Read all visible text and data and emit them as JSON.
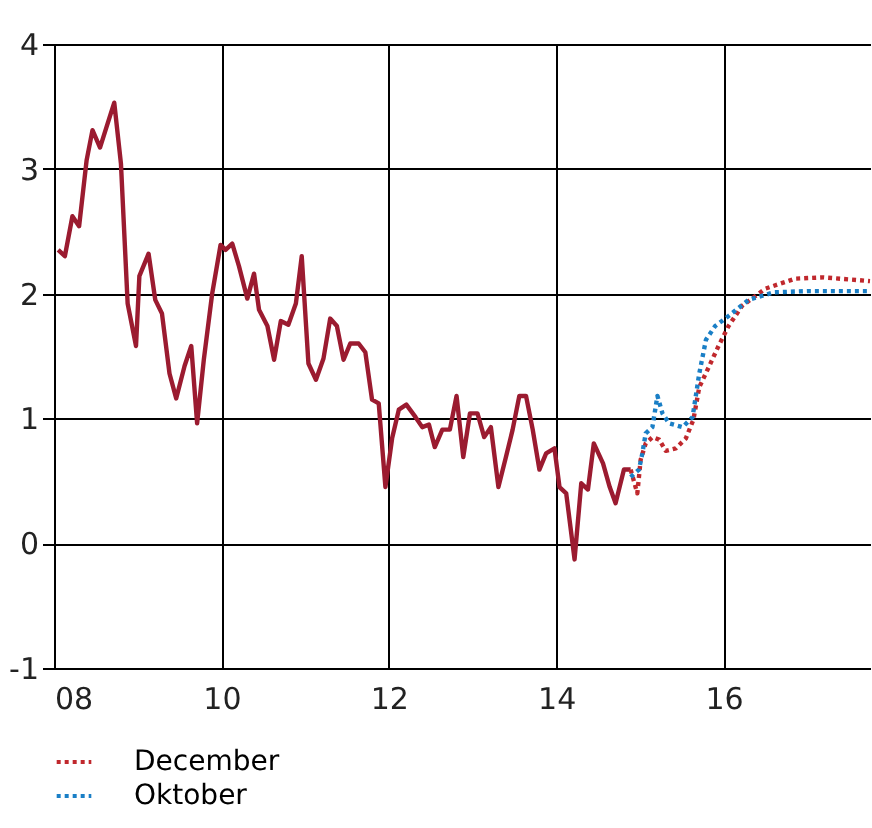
{
  "chart_data": {
    "type": "line",
    "xlim": [
      8,
      17.75
    ],
    "xticks": [
      {
        "value": 8,
        "label": "08"
      },
      {
        "value": 10,
        "label": "10"
      },
      {
        "value": 12,
        "label": "12"
      },
      {
        "value": 14,
        "label": "14"
      },
      {
        "value": 16,
        "label": "16"
      }
    ],
    "ylim": [
      -1,
      4
    ],
    "yticks": [
      -1,
      0,
      1,
      2,
      3,
      4
    ],
    "grid": true,
    "legend": "bottom left",
    "marker": "none",
    "series": [
      {
        "color": "#9b1b30",
        "line_style": "solid",
        "x": [
          8.05,
          8.13,
          8.22,
          8.3,
          8.39,
          8.46,
          8.55,
          8.63,
          8.72,
          8.8,
          8.88,
          8.98,
          9.02,
          9.13,
          9.21,
          9.29,
          9.38,
          9.46,
          9.56,
          9.64,
          9.71,
          9.79,
          9.89,
          9.99,
          10.05,
          10.13,
          10.21,
          10.31,
          10.39,
          10.45,
          10.55,
          10.63,
          10.71,
          10.8,
          10.89,
          10.96,
          11.04,
          11.13,
          11.22,
          11.3,
          11.38,
          11.46,
          11.54,
          11.64,
          11.72,
          11.8,
          11.88,
          11.96,
          12.04,
          12.12,
          12.21,
          12.32,
          12.4,
          12.48,
          12.55,
          12.64,
          12.73,
          12.81,
          12.89,
          12.97,
          13.06,
          13.14,
          13.22,
          13.31,
          13.4,
          13.48,
          13.56,
          13.64,
          13.72,
          13.8,
          13.88,
          13.98,
          14.04,
          14.12,
          14.22,
          14.3,
          14.38,
          14.45,
          14.56,
          14.64,
          14.71,
          14.81,
          14.89
        ],
        "values": [
          2.35,
          2.3,
          2.62,
          2.54,
          3.07,
          3.31,
          3.17,
          3.34,
          3.53,
          3.04,
          1.92,
          1.58,
          2.14,
          2.32,
          1.95,
          1.84,
          1.36,
          1.16,
          1.42,
          1.58,
          0.96,
          1.47,
          2.0,
          2.39,
          2.35,
          2.4,
          2.22,
          1.96,
          2.16,
          1.87,
          1.74,
          1.47,
          1.78,
          1.75,
          1.92,
          2.3,
          1.44,
          1.31,
          1.48,
          1.8,
          1.74,
          1.47,
          1.6,
          1.6,
          1.53,
          1.15,
          1.12,
          0.45,
          0.84,
          1.07,
          1.11,
          1.01,
          0.93,
          0.95,
          0.77,
          0.91,
          0.91,
          1.18,
          0.69,
          1.04,
          1.04,
          0.85,
          0.93,
          0.45,
          0.69,
          0.91,
          1.18,
          1.18,
          0.91,
          0.59,
          0.72,
          0.76,
          0.45,
          0.4,
          -0.13,
          0.48,
          0.43,
          0.8,
          0.64,
          0.45,
          0.32,
          0.59,
          0.59
        ]
      },
      {
        "name": "December",
        "color": "#c0282d",
        "line_style": "dotted",
        "x": [
          14.89,
          14.97,
          15.01,
          15.07,
          15.15,
          15.23,
          15.31,
          15.43,
          15.55,
          15.64,
          15.71,
          15.83,
          15.94,
          16.06,
          16.22,
          16.5,
          16.86,
          17.2,
          17.75
        ],
        "values": [
          0.59,
          0.4,
          0.67,
          0.8,
          0.85,
          0.83,
          0.74,
          0.76,
          0.84,
          0.99,
          1.25,
          1.42,
          1.58,
          1.74,
          1.9,
          2.04,
          2.12,
          2.13,
          2.1
        ]
      },
      {
        "name": "Oktober",
        "color": "#1a7fc6",
        "line_style": "dotted",
        "x": [
          14.89,
          14.99,
          15.03,
          15.07,
          15.15,
          15.21,
          15.27,
          15.35,
          15.51,
          15.63,
          15.71,
          15.79,
          15.9,
          16.06,
          16.3,
          16.6,
          17.0,
          17.75
        ],
        "values": [
          0.53,
          0.59,
          0.72,
          0.88,
          0.93,
          1.18,
          1.04,
          0.96,
          0.93,
          1.01,
          1.36,
          1.63,
          1.74,
          1.82,
          1.95,
          2.01,
          2.02,
          2.02
        ]
      }
    ]
  }
}
